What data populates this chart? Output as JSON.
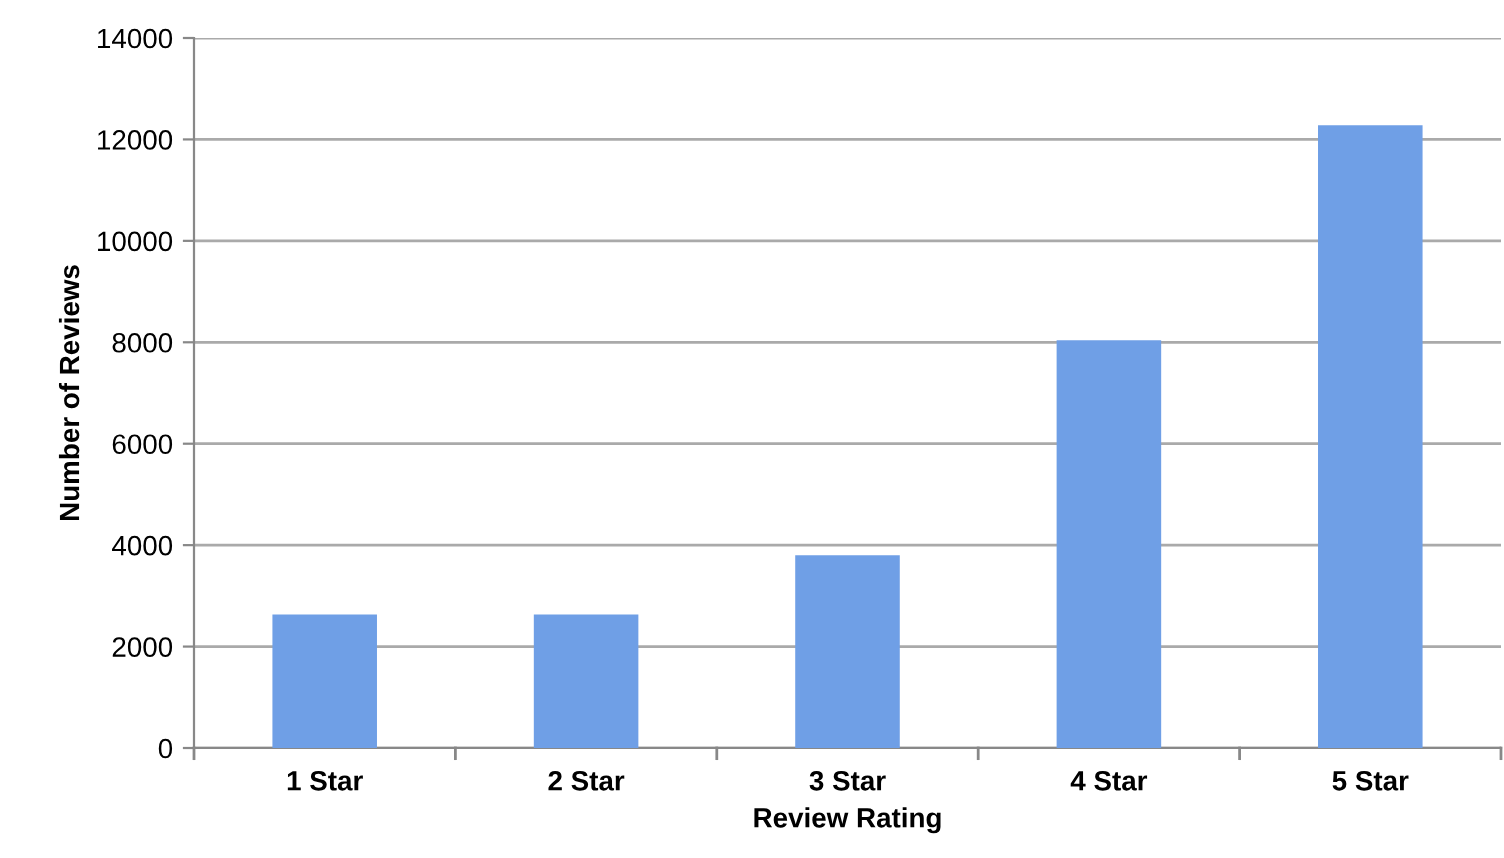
{
  "chart_data": {
    "type": "bar",
    "xlabel": "Review Rating",
    "ylabel": "Number of Reviews",
    "categories": [
      "1 Star",
      "2 Star",
      "3 Star",
      "4 Star",
      "5 Star"
    ],
    "values": [
      2630,
      2630,
      3800,
      8040,
      12280
    ],
    "color": "#6f9fe6",
    "ylim": [
      0,
      14000
    ],
    "yticks": [
      0,
      2000,
      4000,
      6000,
      8000,
      10000,
      12000,
      14000
    ],
    "grid": "y"
  }
}
